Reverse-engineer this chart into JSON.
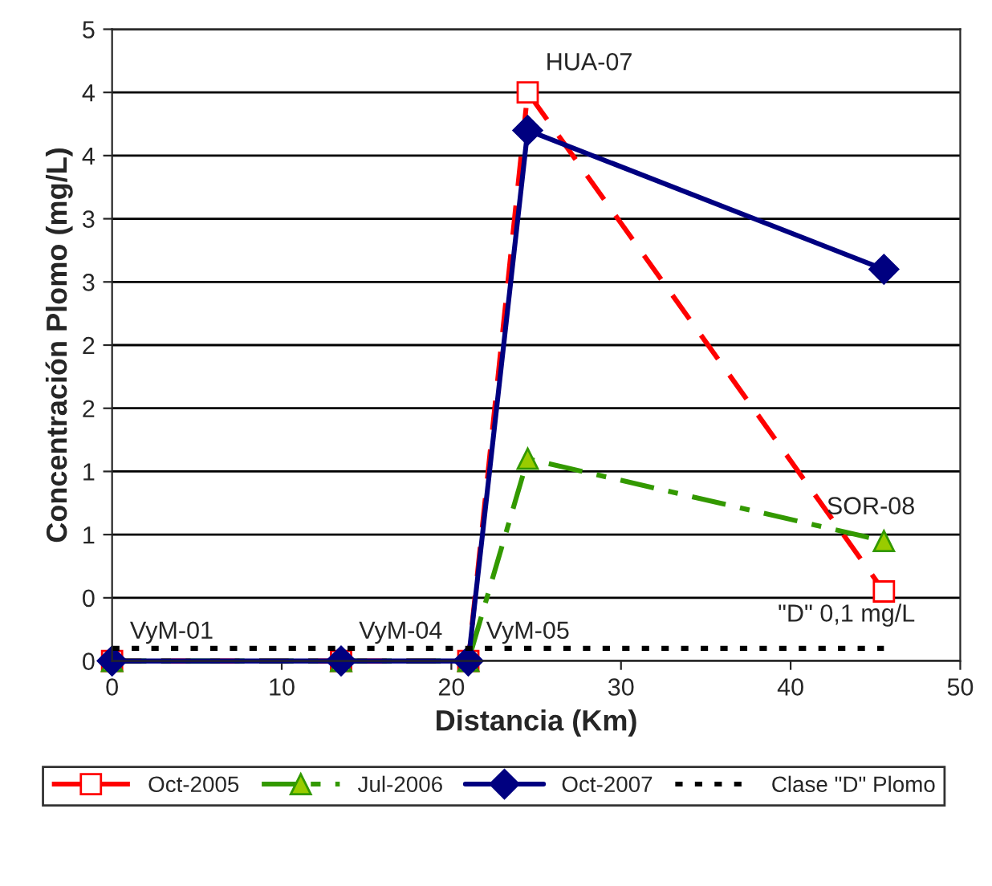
{
  "chart_data": {
    "type": "line",
    "xlabel": "Distancia (Km)",
    "ylabel": "Concentración Plomo (mg/L)",
    "x": [
      0,
      13.5,
      21,
      24.5,
      45.5
    ],
    "series": [
      {
        "name": "Oct-2005",
        "color": "#ff0000",
        "values": [
          0,
          0,
          0,
          4.5,
          0.55
        ],
        "marker": "square",
        "line_style": "dashed"
      },
      {
        "name": "Jul-2006",
        "color": "#339900",
        "values": [
          0,
          0,
          0,
          1.6,
          0.95
        ],
        "marker": "triangle",
        "line_style": "dashdot"
      },
      {
        "name": "Oct-2007",
        "color": "#000080",
        "values": [
          0,
          0,
          0,
          4.2,
          3.1
        ],
        "marker": "diamond",
        "line_style": "solid"
      },
      {
        "name": "Clase \"D\" Plomo",
        "color": "#000000",
        "x": [
          0,
          45.5
        ],
        "values": [
          0.1,
          0.1
        ],
        "marker": "none",
        "line_style": "dotted"
      }
    ],
    "xlim": [
      0,
      50
    ],
    "xticks": [
      0,
      10,
      20,
      30,
      40,
      50
    ],
    "ylim": [
      0,
      5
    ],
    "yticks": [
      {
        "value": 0,
        "label": "0"
      },
      {
        "value": 0.5,
        "label": "0"
      },
      {
        "value": 1,
        "label": "1"
      },
      {
        "value": 1.5,
        "label": "1"
      },
      {
        "value": 2,
        "label": "2"
      },
      {
        "value": 2.5,
        "label": "2"
      },
      {
        "value": 3,
        "label": "3"
      },
      {
        "value": 3.5,
        "label": "3"
      },
      {
        "value": 4,
        "label": "4"
      },
      {
        "value": 4.5,
        "label": "4"
      },
      {
        "value": 5,
        "label": "5"
      }
    ],
    "grid": "y",
    "legend": "bottom",
    "annotations": [
      {
        "text": "HUA-07",
        "x": 24.5,
        "y": 4.5
      },
      {
        "text": "SOR-08",
        "x": 45.5,
        "y": 0.95
      },
      {
        "text": "VyM-01",
        "x": 0,
        "y": 0
      },
      {
        "text": "VyM-04",
        "x": 13.5,
        "y": 0
      },
      {
        "text": "VyM-05",
        "x": 21,
        "y": 0
      },
      {
        "text": "\"D\" 0,1 mg/L",
        "x": 45.5,
        "y": 0.1
      }
    ]
  }
}
